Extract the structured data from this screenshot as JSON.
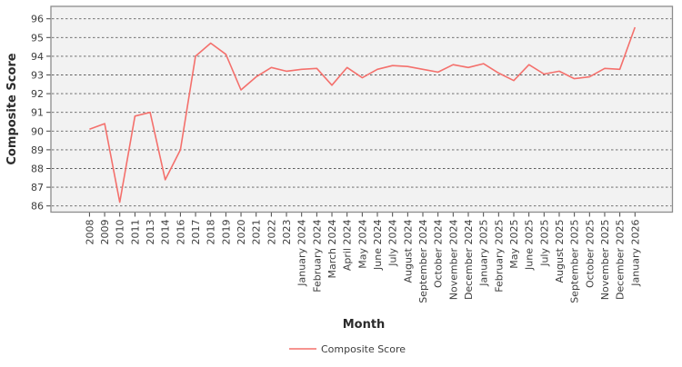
{
  "chart_data": {
    "type": "line",
    "title": "",
    "xlabel": "Month",
    "ylabel": "Composite Score",
    "legend": [
      "Composite Score"
    ],
    "legend_position": "bottom-center",
    "grid": true,
    "grid_style": "dashed",
    "ylim": [
      86,
      96
    ],
    "yticks": [
      86,
      87,
      88,
      89,
      90,
      91,
      92,
      93,
      94,
      95,
      96
    ],
    "categories": [
      "2008",
      "2009",
      "2010",
      "2011",
      "2013",
      "2014",
      "2016",
      "2017",
      "2018",
      "2019",
      "2020",
      "2021",
      "2022",
      "2023",
      "January 2024",
      "February 2024",
      "March 2024",
      "April 2024",
      "May 2024",
      "June 2024",
      "July 2024",
      "August 2024",
      "September 2024",
      "October 2024",
      "November 2024",
      "December 2024",
      "January 2025",
      "February 2025",
      "May 2025",
      "June 2025",
      "July 2025",
      "August 2025",
      "September 2025",
      "October 2025",
      "November 2025",
      "December 2025",
      "January 2026"
    ],
    "series": [
      {
        "name": "Composite Score",
        "values": [
          90.1,
          90.4,
          86.2,
          90.8,
          91.0,
          87.4,
          89.0,
          94.0,
          94.7,
          94.1,
          92.2,
          92.9,
          93.4,
          93.2,
          93.3,
          93.35,
          92.45,
          93.4,
          92.85,
          93.3,
          93.5,
          93.45,
          93.3,
          93.15,
          93.55,
          93.4,
          93.6,
          93.1,
          92.7,
          93.55,
          93.05,
          93.2,
          92.8,
          92.9,
          93.35,
          93.3,
          95.55
        ]
      }
    ],
    "colors": {
      "line": "#f4706c",
      "plot_background": "#f2f2f2",
      "gridline": "#5f5f5f",
      "border": "#8c8c8c",
      "tick_text": "#3d3d3d"
    }
  }
}
